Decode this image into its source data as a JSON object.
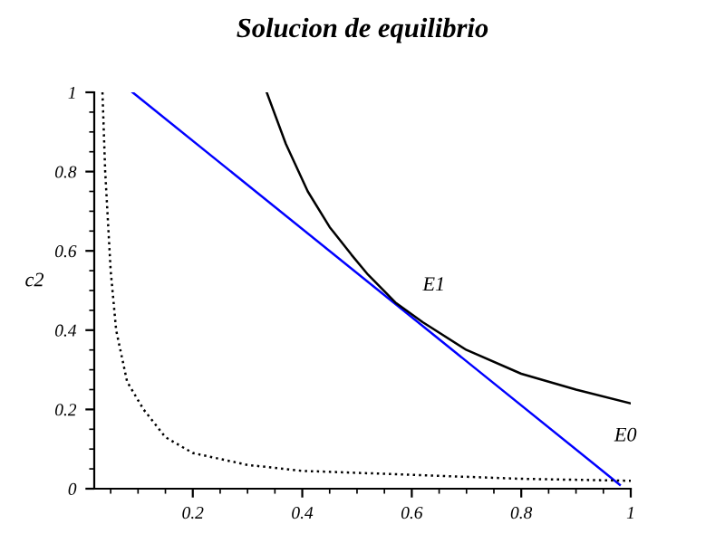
{
  "chart_data": {
    "type": "line",
    "title": "Solucion de equilibrio",
    "ylabel": "c2",
    "xlim": [
      0.02,
      1.0
    ],
    "ylim": [
      0,
      1
    ],
    "xticks": [
      0.2,
      0.4,
      0.6,
      0.8,
      1
    ],
    "yticks": [
      0,
      0.2,
      0.4,
      0.6,
      0.8,
      1
    ],
    "grid": false,
    "legend": false,
    "series": [
      {
        "color": "#0000ff",
        "x": [
          0.09,
          0.98
        ],
        "values": [
          1,
          0.01
        ]
      },
      {
        "color": "#000000",
        "x": [
          0.335,
          0.37,
          0.41,
          0.45,
          0.49,
          0.52,
          0.57,
          0.62,
          0.7,
          0.8,
          0.9,
          1.0
        ],
        "values": [
          1,
          0.87,
          0.75,
          0.66,
          0.59,
          0.54,
          0.47,
          0.42,
          0.35,
          0.29,
          0.25,
          0.215
        ]
      },
      {
        "color": "#000000",
        "line_style": "dotted",
        "x": [
          0.035,
          0.04,
          0.05,
          0.06,
          0.08,
          0.11,
          0.15,
          0.2,
          0.3,
          0.4,
          0.6,
          0.8,
          1.0
        ],
        "values": [
          1,
          0.8,
          0.55,
          0.4,
          0.27,
          0.2,
          0.13,
          0.09,
          0.06,
          0.045,
          0.035,
          0.025,
          0.02
        ]
      }
    ],
    "annotations": [
      "E1",
      "E0"
    ]
  }
}
